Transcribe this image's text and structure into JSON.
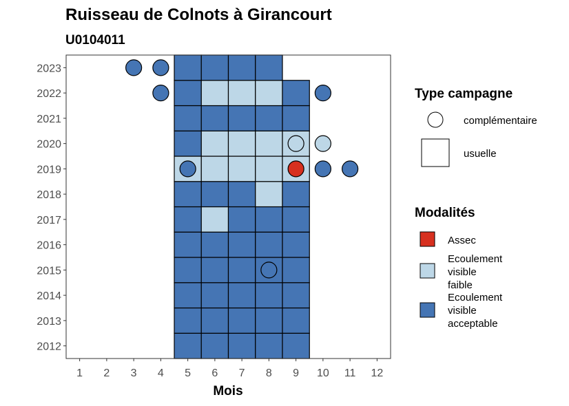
{
  "chart_data": {
    "type": "heatmap",
    "title": "Ruisseau de Colnots à Girancourt",
    "subtitle": "U0104011",
    "xlabel": "Mois",
    "ylabel": "",
    "x_ticks": [
      1,
      2,
      3,
      4,
      5,
      6,
      7,
      8,
      9,
      10,
      11,
      12
    ],
    "y_ticks": [
      2012,
      2013,
      2014,
      2015,
      2016,
      2017,
      2018,
      2019,
      2020,
      2021,
      2022,
      2023
    ],
    "xlim": [
      0.5,
      12.5
    ],
    "ylim": [
      2011.5,
      2023.5
    ],
    "colors": {
      "Assec": "#d7301f",
      "Ecoulement visible faible": "#bdd7e7",
      "Ecoulement visible acceptable": "#4575b4"
    },
    "usuelle": [
      {
        "year": 2012,
        "months": {
          "5": "Ecoulement visible acceptable",
          "6": "Ecoulement visible acceptable",
          "7": "Ecoulement visible acceptable",
          "8": "Ecoulement visible acceptable",
          "9": "Ecoulement visible acceptable"
        }
      },
      {
        "year": 2013,
        "months": {
          "5": "Ecoulement visible acceptable",
          "6": "Ecoulement visible acceptable",
          "7": "Ecoulement visible acceptable",
          "8": "Ecoulement visible acceptable",
          "9": "Ecoulement visible acceptable"
        }
      },
      {
        "year": 2014,
        "months": {
          "5": "Ecoulement visible acceptable",
          "6": "Ecoulement visible acceptable",
          "7": "Ecoulement visible acceptable",
          "8": "Ecoulement visible acceptable",
          "9": "Ecoulement visible acceptable"
        }
      },
      {
        "year": 2015,
        "months": {
          "5": "Ecoulement visible acceptable",
          "6": "Ecoulement visible acceptable",
          "7": "Ecoulement visible acceptable",
          "8": "Ecoulement visible acceptable",
          "9": "Ecoulement visible acceptable"
        }
      },
      {
        "year": 2016,
        "months": {
          "5": "Ecoulement visible acceptable",
          "6": "Ecoulement visible acceptable",
          "7": "Ecoulement visible acceptable",
          "8": "Ecoulement visible acceptable",
          "9": "Ecoulement visible acceptable"
        }
      },
      {
        "year": 2017,
        "months": {
          "5": "Ecoulement visible acceptable",
          "6": "Ecoulement visible faible",
          "7": "Ecoulement visible acceptable",
          "8": "Ecoulement visible acceptable",
          "9": "Ecoulement visible acceptable"
        }
      },
      {
        "year": 2018,
        "months": {
          "5": "Ecoulement visible acceptable",
          "6": "Ecoulement visible acceptable",
          "7": "Ecoulement visible acceptable",
          "8": "Ecoulement visible faible",
          "9": "Ecoulement visible acceptable"
        }
      },
      {
        "year": 2019,
        "months": {
          "5": "Ecoulement visible faible",
          "6": "Ecoulement visible faible",
          "7": "Ecoulement visible faible",
          "8": "Ecoulement visible faible",
          "9": "Ecoulement visible faible"
        }
      },
      {
        "year": 2020,
        "months": {
          "5": "Ecoulement visible acceptable",
          "6": "Ecoulement visible faible",
          "7": "Ecoulement visible faible",
          "8": "Ecoulement visible faible",
          "9": "Ecoulement visible faible"
        }
      },
      {
        "year": 2021,
        "months": {
          "5": "Ecoulement visible acceptable",
          "6": "Ecoulement visible acceptable",
          "7": "Ecoulement visible acceptable",
          "8": "Ecoulement visible acceptable",
          "9": "Ecoulement visible acceptable"
        }
      },
      {
        "year": 2022,
        "months": {
          "5": "Ecoulement visible acceptable",
          "6": "Ecoulement visible faible",
          "7": "Ecoulement visible faible",
          "8": "Ecoulement visible faible",
          "9": "Ecoulement visible acceptable"
        }
      },
      {
        "year": 2023,
        "months": {
          "5": "Ecoulement visible acceptable",
          "6": "Ecoulement visible acceptable",
          "7": "Ecoulement visible acceptable",
          "8": "Ecoulement visible acceptable"
        }
      }
    ],
    "complementaire": [
      {
        "year": 2023,
        "month": 3,
        "modalite": "Ecoulement visible acceptable"
      },
      {
        "year": 2023,
        "month": 4,
        "modalite": "Ecoulement visible acceptable"
      },
      {
        "year": 2022,
        "month": 4,
        "modalite": "Ecoulement visible acceptable"
      },
      {
        "year": 2022,
        "month": 10,
        "modalite": "Ecoulement visible acceptable"
      },
      {
        "year": 2020,
        "month": 9,
        "modalite": "Ecoulement visible faible"
      },
      {
        "year": 2020,
        "month": 10,
        "modalite": "Ecoulement visible faible"
      },
      {
        "year": 2019,
        "month": 5,
        "modalite": "Ecoulement visible acceptable"
      },
      {
        "year": 2019,
        "month": 9,
        "modalite": "Assec"
      },
      {
        "year": 2019,
        "month": 10,
        "modalite": "Ecoulement visible acceptable"
      },
      {
        "year": 2019,
        "month": 11,
        "modalite": "Ecoulement visible acceptable"
      },
      {
        "year": 2015,
        "month": 8,
        "modalite": "Ecoulement visible acceptable"
      }
    ],
    "legend": {
      "placement": "right",
      "type_title": "Type campagne",
      "type_items": [
        "complémentaire",
        "usuelle"
      ],
      "modalites_title": "Modalités",
      "modalites_items": [
        {
          "key": "Assec",
          "lines": [
            "Assec"
          ]
        },
        {
          "key": "Ecoulement visible faible",
          "lines": [
            "Ecoulement",
            "visible",
            "faible"
          ]
        },
        {
          "key": "Ecoulement visible acceptable",
          "lines": [
            "Ecoulement",
            "visible",
            "acceptable"
          ]
        }
      ]
    }
  }
}
